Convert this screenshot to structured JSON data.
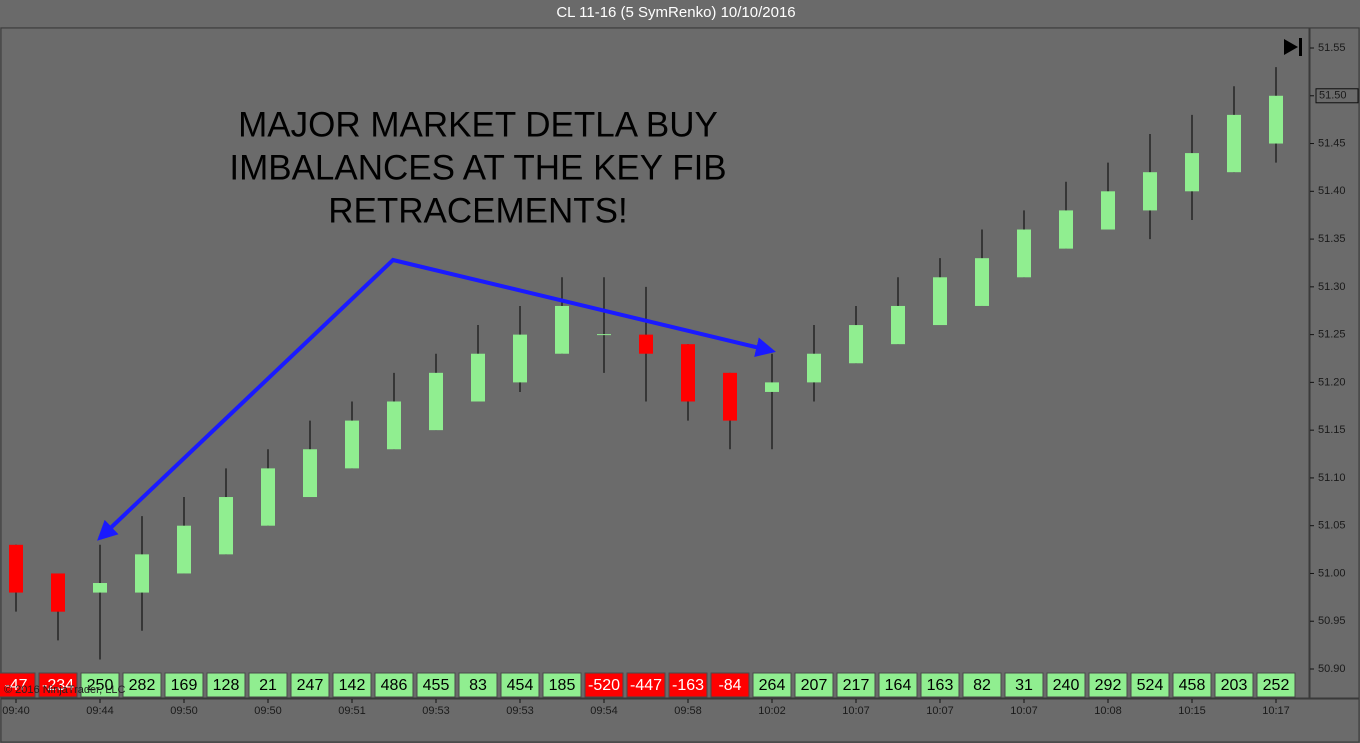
{
  "chart_data": {
    "type": "candlestick",
    "title": "CL 11-16 (5 SymRenko)  10/10/2016",
    "annotation": [
      "MAJOR MARKET DETLA BUY",
      "IMBALANCES AT THE KEY FIB",
      "RETRACEMENTS!"
    ],
    "watermark": "© 2016 NinjaTrader, LLC",
    "categories": [
      "09:40",
      null,
      "09:44",
      null,
      "09:50",
      null,
      "09:50",
      null,
      "09:51",
      null,
      "09:53",
      null,
      "09:53",
      null,
      "09:54",
      null,
      "09:58",
      null,
      "10:02",
      null,
      "10:07",
      null,
      "10:07",
      null,
      "10:07",
      null,
      "10:08",
      null,
      "10:15",
      null,
      "10:17"
    ],
    "open": [
      51.03,
      51.0,
      50.98,
      50.98,
      51.0,
      51.02,
      51.05,
      51.08,
      51.11,
      51.13,
      51.15,
      51.18,
      51.2,
      51.23,
      51.25,
      51.25,
      51.24,
      51.21,
      51.19,
      51.2,
      51.22,
      51.24,
      51.26,
      51.28,
      51.31,
      51.34,
      51.36,
      51.38,
      51.4,
      51.42,
      51.45
    ],
    "high": [
      51.03,
      51.0,
      51.03,
      51.06,
      51.08,
      51.11,
      51.13,
      51.16,
      51.18,
      51.21,
      51.23,
      51.26,
      51.28,
      51.31,
      51.31,
      51.3,
      51.24,
      51.21,
      51.23,
      51.26,
      51.28,
      51.31,
      51.33,
      51.36,
      51.38,
      51.41,
      51.43,
      51.46,
      51.48,
      51.51,
      51.53
    ],
    "low": [
      50.96,
      50.93,
      50.91,
      50.94,
      51.0,
      51.02,
      51.05,
      51.08,
      51.11,
      51.13,
      51.15,
      51.18,
      51.19,
      51.23,
      51.21,
      51.18,
      51.16,
      51.13,
      51.13,
      51.18,
      51.22,
      51.24,
      51.26,
      51.28,
      51.31,
      51.34,
      51.36,
      51.35,
      51.37,
      51.42,
      51.43
    ],
    "close": [
      50.98,
      50.96,
      50.99,
      51.02,
      51.05,
      51.08,
      51.11,
      51.13,
      51.16,
      51.18,
      51.21,
      51.23,
      51.25,
      51.28,
      51.25,
      51.23,
      51.18,
      51.16,
      51.2,
      51.23,
      51.26,
      51.28,
      51.31,
      51.33,
      51.36,
      51.38,
      51.4,
      51.42,
      51.44,
      51.48,
      51.5
    ],
    "deltas": [
      -47,
      -234,
      250,
      282,
      169,
      128,
      21,
      247,
      142,
      486,
      455,
      83,
      454,
      185,
      -520,
      -447,
      -163,
      -84,
      264,
      207,
      217,
      164,
      163,
      82,
      31,
      240,
      292,
      524,
      458,
      203,
      252
    ],
    "colors": {
      "up": "#90ee90",
      "down": "#ff0000"
    },
    "last_price": {
      "value": 51.5,
      "label": "51.50"
    },
    "ylim": [
      50.9,
      51.55
    ],
    "yticks": [
      {
        "value": 50.9,
        "label": "50.90"
      },
      50.95,
      {
        "value": 51,
        "label": "51.00"
      },
      51.05,
      {
        "value": 51.1,
        "label": "51.10"
      },
      51.15,
      {
        "value": 51.2,
        "label": "51.20"
      },
      51.25,
      {
        "value": 51.3,
        "label": "51.30"
      },
      51.35,
      {
        "value": 51.4,
        "label": "51.40"
      },
      51.45,
      {
        "value": 51.5,
        "label": "51.50"
      },
      51.55
    ]
  }
}
